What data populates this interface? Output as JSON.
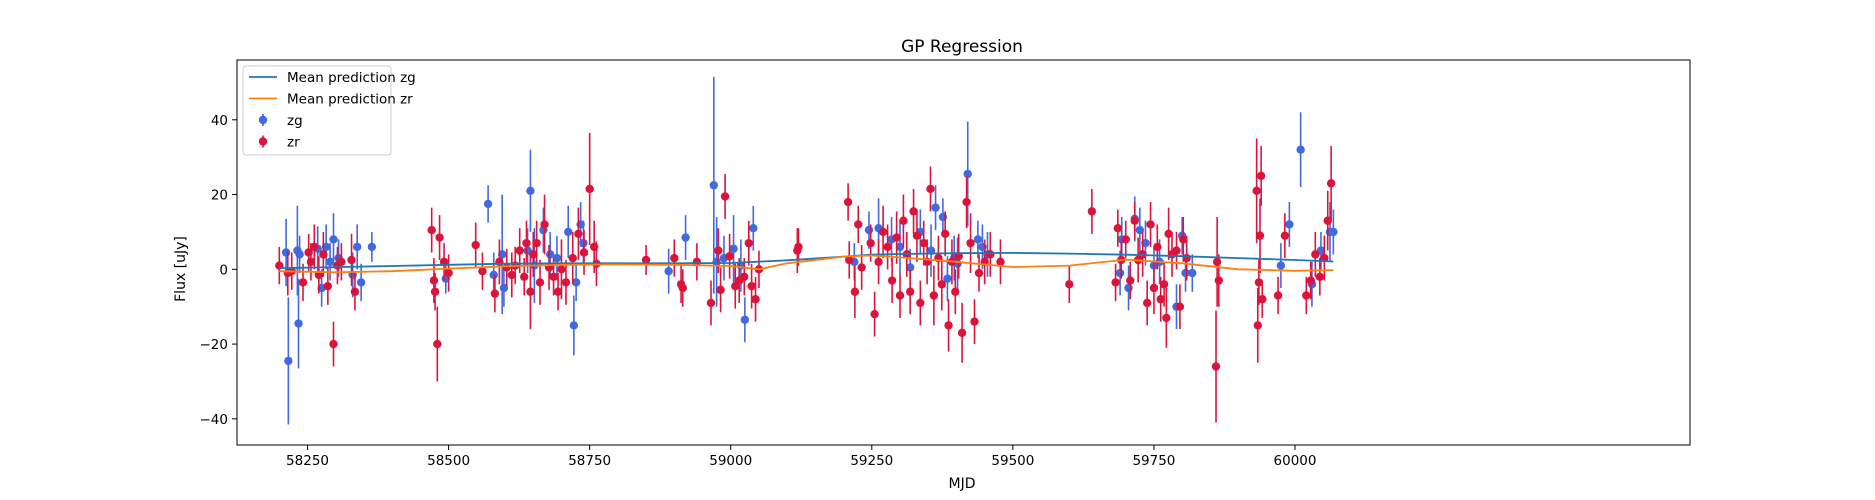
{
  "chart_data": {
    "type": "scatter",
    "title": "GP Regression",
    "xlabel": "MJD",
    "ylabel": "Flux [uJy]",
    "xlim": [
      58125,
      60700
    ],
    "ylim": [
      -47,
      56
    ],
    "xticks": [
      58250,
      58500,
      58750,
      59000,
      59250,
      59500,
      59750,
      60000
    ],
    "yticks": [
      -40,
      -20,
      0,
      20,
      40
    ],
    "legend_position": "top-left",
    "grid": false,
    "series": [
      {
        "name": "Mean prediction zg",
        "kind": "line",
        "color": "#1f77b4",
        "x": [
          58200,
          58300,
          58400,
          58500,
          58600,
          58700,
          58800,
          58900,
          59000,
          59100,
          59200,
          59250,
          59300,
          59400,
          59500,
          59600,
          59700,
          59800,
          59900,
          60000,
          60068
        ],
        "y": [
          0.3,
          0.6,
          0.9,
          1.2,
          1.5,
          1.6,
          1.6,
          1.6,
          1.7,
          2.4,
          3.4,
          3.9,
          4.1,
          4.3,
          4.4,
          4.2,
          3.9,
          3.5,
          3.0,
          2.5,
          2.1
        ]
      },
      {
        "name": "Mean prediction zr",
        "kind": "line",
        "color": "#ff7f0e",
        "x": [
          58200,
          58300,
          58400,
          58500,
          58600,
          58700,
          58800,
          58900,
          59000,
          59050,
          59100,
          59200,
          59250,
          59300,
          59400,
          59500,
          59600,
          59700,
          59800,
          59900,
          60000,
          60068
        ],
        "y": [
          -0.5,
          -0.8,
          -0.5,
          0.2,
          0.8,
          1.2,
          1.3,
          1.2,
          0.9,
          0.0,
          1.6,
          3.4,
          3.7,
          3.2,
          2.0,
          0.6,
          1.0,
          2.6,
          1.6,
          0.0,
          -0.4,
          -0.2
        ]
      },
      {
        "name": "zg",
        "kind": "errorbar",
        "color": "#4169e1",
        "x": [
          58212,
          58216,
          58232,
          58234,
          58236,
          58268,
          58275,
          58283,
          58290,
          58296,
          58305,
          58330,
          58338,
          58345,
          58364,
          58495,
          58570,
          58580,
          58595,
          58598,
          58640,
          58645,
          58652,
          58668,
          58680,
          58692,
          58712,
          58722,
          58726,
          58734,
          58739,
          58890,
          58920,
          58970,
          58975,
          58988,
          59005,
          59018,
          59025,
          59040,
          59219,
          59245,
          59262,
          59285,
          59300,
          59318,
          59336,
          59355,
          59363,
          59376,
          59384,
          59396,
          59402,
          59420,
          59438,
          59446,
          59455,
          59690,
          59693,
          59705,
          59716,
          59725,
          59735,
          59750,
          59760,
          59790,
          59800,
          59806,
          59818,
          59975,
          59990,
          60010,
          60030,
          60046,
          60062,
          60068
        ],
        "y": [
          4.5,
          -24.5,
          5.0,
          -14.5,
          4.0,
          5.5,
          -5.0,
          6.0,
          2.0,
          8.0,
          3.0,
          -1.5,
          6.0,
          -3.5,
          6.0,
          -2.5,
          17.5,
          -1.5,
          4.0,
          -5.0,
          5.0,
          21.0,
          1.0,
          10.5,
          4.0,
          3.0,
          10.0,
          -15.0,
          -3.5,
          12.0,
          7.0,
          -0.5,
          8.5,
          22.5,
          2.0,
          3.0,
          5.5,
          1.0,
          -13.5,
          11.0,
          2.0,
          10.5,
          11.0,
          8.0,
          6.0,
          0.5,
          10.0,
          5.0,
          16.5,
          14.0,
          -2.5,
          3.0,
          1.5,
          25.5,
          8.0,
          6.0,
          4.0,
          -1.0,
          8.0,
          -5.0,
          13.5,
          10.5,
          7.0,
          1.0,
          2.0,
          -10.0,
          9.0,
          -1.0,
          -1.0,
          1.0,
          12.0,
          32.0,
          -4.0,
          5.0,
          10.0,
          10.0
        ],
        "err": [
          9,
          17,
          12,
          12,
          5,
          6,
          5,
          6,
          5,
          7,
          5,
          6,
          6,
          5,
          4,
          4,
          5,
          6,
          16,
          5,
          6,
          11,
          10,
          6,
          6,
          6,
          7,
          8,
          5,
          6,
          6,
          6,
          6,
          29,
          12,
          6,
          9,
          7,
          6,
          6,
          5,
          5,
          8,
          6,
          7,
          5,
          6,
          7,
          6,
          5,
          6,
          6,
          7,
          14,
          5,
          6,
          6,
          6,
          6,
          6,
          6,
          6,
          6,
          5,
          6,
          6,
          5,
          5,
          5,
          6,
          6,
          10,
          6,
          5,
          8,
          6
        ]
      },
      {
        "name": "zr",
        "kind": "errorbar",
        "color": "#dc143c",
        "x": [
          58200,
          58215,
          58222,
          58242,
          58252,
          58256,
          58262,
          58270,
          58278,
          58286,
          58296,
          58303,
          58310,
          58328,
          58334,
          58470,
          58474,
          58476,
          58480,
          58484,
          58492,
          58500,
          58548,
          58560,
          58582,
          58590,
          58603,
          58612,
          58618,
          58626,
          58634,
          58638,
          58645,
          58650,
          58656,
          58662,
          58670,
          58678,
          58686,
          58694,
          58700,
          58708,
          58720,
          58730,
          58740,
          58750,
          58758,
          58762,
          58850,
          58900,
          58912,
          58915,
          58940,
          58965,
          58978,
          58982,
          58990,
          58998,
          59008,
          59015,
          59024,
          59032,
          59037,
          59044,
          59050,
          59118,
          59120,
          59208,
          59210,
          59220,
          59226,
          59232,
          59248,
          59255,
          59262,
          59270,
          59278,
          59286,
          59294,
          59300,
          59306,
          59312,
          59318,
          59324,
          59330,
          59336,
          59342,
          59348,
          59354,
          59360,
          59368,
          59374,
          59380,
          59386,
          59392,
          59398,
          59404,
          59410,
          59418,
          59425,
          59432,
          59440,
          59450,
          59460,
          59478,
          59600,
          59640,
          59682,
          59686,
          59692,
          59700,
          59708,
          59716,
          59722,
          59730,
          59738,
          59744,
          59750,
          59756,
          59762,
          59768,
          59772,
          59776,
          59782,
          59790,
          59796,
          59802,
          59808,
          59860,
          59862,
          59865,
          59932,
          59934,
          59936,
          59938,
          59940,
          59942,
          59970,
          59982,
          60020,
          60028,
          60036,
          60044,
          60052,
          60058,
          60064
        ],
        "y": [
          1.0,
          -1.0,
          -0.5,
          -3.5,
          4.5,
          2.0,
          6.0,
          -1.5,
          4.0,
          -4.5,
          -20.0,
          1.0,
          2.0,
          2.5,
          -6.0,
          10.5,
          -3.0,
          -6.0,
          -20.0,
          8.5,
          2.0,
          -1.0,
          6.5,
          -0.5,
          -6.5,
          2.0,
          0.5,
          -1.5,
          1.0,
          5.0,
          -2.0,
          7.0,
          -6.0,
          4.0,
          7.0,
          -3.5,
          12.0,
          0.5,
          -2.0,
          -6.0,
          0.0,
          -3.5,
          3.0,
          9.5,
          4.5,
          21.5,
          6.0,
          1.5,
          2.5,
          3.0,
          -4.0,
          -5.0,
          2.0,
          -9.0,
          5.0,
          -5.5,
          19.5,
          3.5,
          -4.5,
          -3.0,
          -2.0,
          7.0,
          -4.5,
          -8.0,
          0.0,
          5.0,
          6.0,
          18.0,
          2.5,
          -6.0,
          12.0,
          0.5,
          7.0,
          -12.0,
          2.0,
          10.0,
          6.0,
          -3.0,
          8.5,
          -7.0,
          13.0,
          4.0,
          -6.0,
          15.5,
          9.0,
          -9.0,
          7.0,
          2.0,
          21.5,
          -7.0,
          3.0,
          -4.0,
          9.5,
          -15.0,
          2.0,
          -6.0,
          3.5,
          -17.0,
          18.0,
          7.0,
          -14.0,
          -1.0,
          2.0,
          4.0,
          2.0,
          -4.0,
          15.5,
          -3.5,
          11.0,
          2.5,
          8.0,
          -3.0,
          13.0,
          2.5,
          4.0,
          -9.0,
          12.0,
          -5.0,
          6.0,
          -8.0,
          -4.0,
          -13.0,
          9.5,
          4.0,
          5.0,
          -10.0,
          8.0,
          3.0,
          -26.0,
          2.0,
          -3.0,
          21.0,
          -15.0,
          -3.5,
          9.0,
          25.0,
          -8.0,
          -7.0,
          9.0,
          -7.0,
          -3.0,
          4.0,
          -2.0,
          3.0,
          13.0,
          23.0
        ],
        "err": [
          5,
          6,
          5,
          5,
          5,
          5,
          6,
          5,
          6,
          5,
          6,
          5,
          5,
          7,
          5,
          6,
          6,
          5,
          10,
          6,
          5,
          5,
          6,
          5,
          5,
          6,
          5,
          6,
          5,
          6,
          5,
          6,
          10,
          6,
          6,
          6,
          8,
          6,
          5,
          5,
          8,
          6,
          7,
          7,
          6,
          15,
          7,
          6,
          4,
          5,
          5,
          5,
          5,
          6,
          6,
          6,
          6,
          6,
          6,
          6,
          5,
          6,
          6,
          6,
          5,
          6,
          5,
          5,
          5,
          7,
          5,
          6,
          5,
          6,
          6,
          7,
          6,
          6,
          7,
          6,
          7,
          6,
          6,
          6,
          7,
          6,
          6,
          6,
          6,
          8,
          6,
          7,
          6,
          7,
          6,
          6,
          6,
          8,
          7,
          8,
          6,
          5,
          6,
          6,
          6,
          5,
          6,
          5,
          5,
          5,
          5,
          5,
          5,
          6,
          6,
          6,
          6,
          7,
          6,
          6,
          6,
          8,
          7,
          6,
          5,
          6,
          6,
          6,
          15,
          12,
          7,
          14,
          10,
          6,
          10,
          8,
          5,
          5,
          6,
          5,
          5,
          6,
          5,
          6,
          8,
          10
        ]
      }
    ]
  }
}
